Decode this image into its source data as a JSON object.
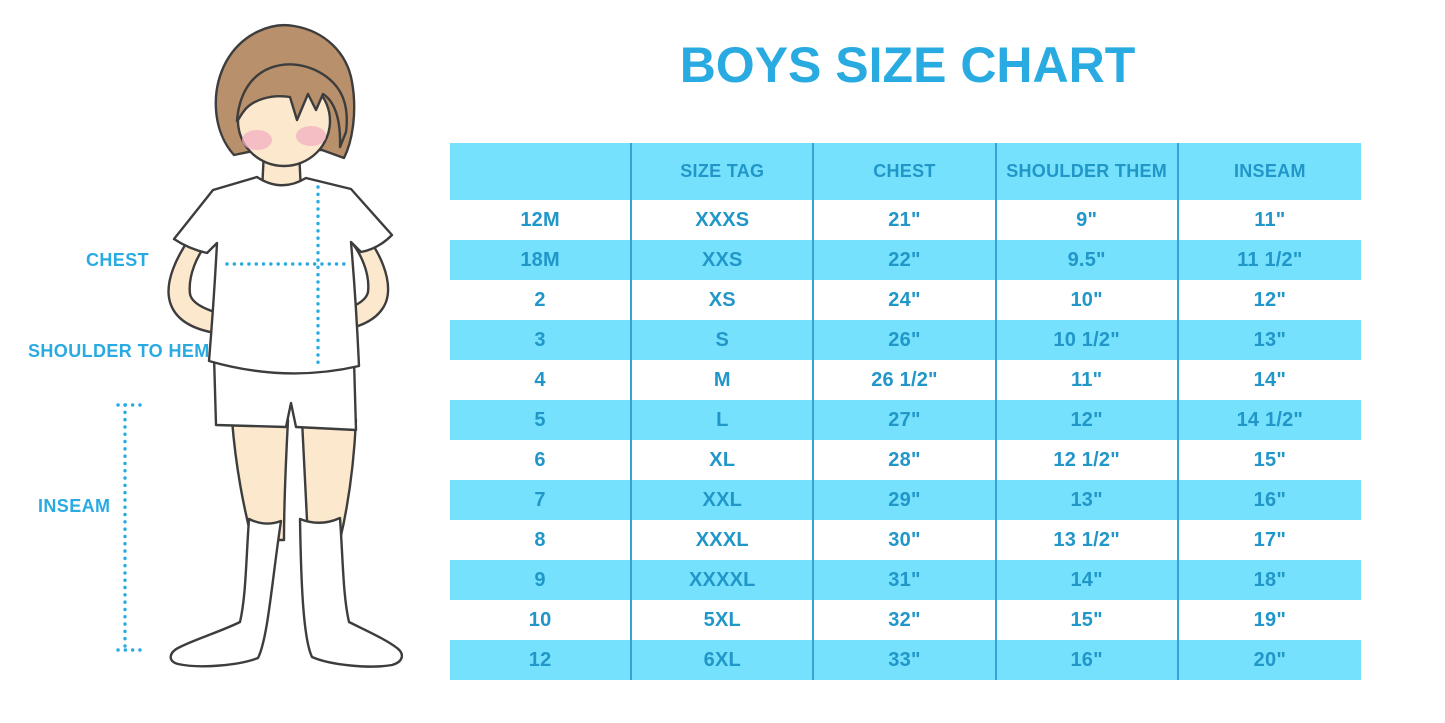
{
  "title": "BOYS SIZE CHART",
  "colors": {
    "accent": "#29ABE2",
    "table_text": "#2196C9",
    "stripe": "#75E1FC",
    "divider": "#35A3D4",
    "hair": "#B8906B",
    "skin": "#FBE8CD",
    "blush": "#F3AFC2"
  },
  "figure": {
    "labels": {
      "chest": "CHEST",
      "shoulder_to_hem": "SHOULDER TO HEM",
      "inseam": "INSEAM"
    }
  },
  "chart_data": {
    "type": "table",
    "title": "BOYS SIZE CHART",
    "headers": [
      "",
      "SIZE TAG",
      "CHEST",
      "SHOULDER THEM",
      "INSEAM"
    ],
    "rows": [
      [
        "12M",
        "XXXS",
        "21\"",
        "9\"",
        "11\""
      ],
      [
        "18M",
        "XXS",
        "22\"",
        "9.5\"",
        "11 1/2\""
      ],
      [
        "2",
        "XS",
        "24\"",
        "10\"",
        "12\""
      ],
      [
        "3",
        "S",
        "26\"",
        "10 1/2\"",
        "13\""
      ],
      [
        "4",
        "M",
        "26 1/2\"",
        "11\"",
        "14\""
      ],
      [
        "5",
        "L",
        "27\"",
        "12\"",
        "14 1/2\""
      ],
      [
        "6",
        "XL",
        "28\"",
        "12 1/2\"",
        "15\""
      ],
      [
        "7",
        "XXL",
        "29\"",
        "13\"",
        "16\""
      ],
      [
        "8",
        "XXXL",
        "30\"",
        "13 1/2\"",
        "17\""
      ],
      [
        "9",
        "XXXXL",
        "31\"",
        "14\"",
        "18\""
      ],
      [
        "10",
        "5XL",
        "32\"",
        "15\"",
        "19\""
      ],
      [
        "12",
        "6XL",
        "33\"",
        "16\"",
        "20\""
      ]
    ]
  }
}
